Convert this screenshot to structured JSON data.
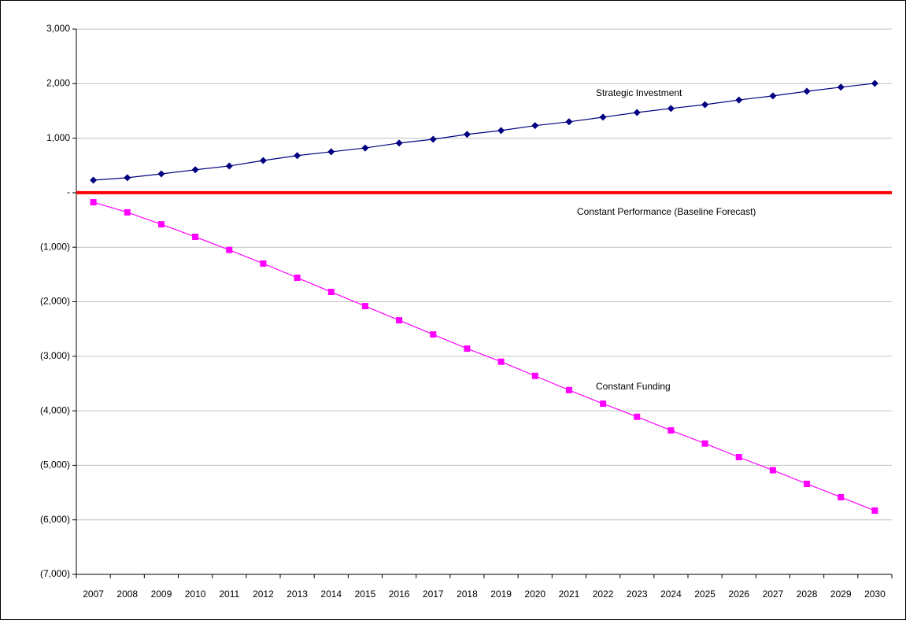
{
  "chart_data": {
    "type": "line",
    "categories": [
      "2007",
      "2008",
      "2009",
      "2010",
      "2011",
      "2012",
      "2013",
      "2014",
      "2015",
      "2016",
      "2017",
      "2018",
      "2019",
      "2020",
      "2021",
      "2022",
      "2023",
      "2024",
      "2025",
      "2026",
      "2027",
      "2028",
      "2029",
      "2030"
    ],
    "series": [
      {
        "name": "Strategic Investment",
        "color": "#000080",
        "marker": "diamond",
        "values": [
          230,
          275,
          345,
          420,
          490,
          590,
          680,
          750,
          820,
          910,
          980,
          1070,
          1140,
          1230,
          1300,
          1385,
          1470,
          1545,
          1615,
          1700,
          1775,
          1860,
          1935,
          2005
        ]
      },
      {
        "name": "Constant Performance (Baseline Forecast)",
        "color": "#ff0000",
        "marker": "none",
        "values": [
          0,
          0,
          0,
          0,
          0,
          0,
          0,
          0,
          0,
          0,
          0,
          0,
          0,
          0,
          0,
          0,
          0,
          0,
          0,
          0,
          0,
          0,
          0,
          0
        ]
      },
      {
        "name": "Constant Funding",
        "color": "#ff00ff",
        "marker": "square",
        "values": [
          -175,
          -360,
          -580,
          -810,
          -1050,
          -1300,
          -1560,
          -1820,
          -2080,
          -2340,
          -2600,
          -2860,
          -3100,
          -3360,
          -3620,
          -3870,
          -4110,
          -4360,
          -4600,
          -4850,
          -5090,
          -5340,
          -5585,
          -5830
        ]
      }
    ],
    "ylim": [
      -7000,
      3000
    ],
    "yticks": [
      {
        "value": -7000,
        "label": "(7,000)"
      },
      {
        "value": -6000,
        "label": "(6,000)"
      },
      {
        "value": -5000,
        "label": "(5,000)"
      },
      {
        "value": -4000,
        "label": "(4,000)"
      },
      {
        "value": -3000,
        "label": "(3,000)"
      },
      {
        "value": -2000,
        "label": "(2,000)"
      },
      {
        "value": -1000,
        "label": "(1,000)"
      },
      {
        "value": 0,
        "label": "-"
      },
      {
        "value": 1000,
        "label": "1,000"
      },
      {
        "value": 2000,
        "label": "2,000"
      },
      {
        "value": 3000,
        "label": "3,000"
      }
    ],
    "grid": true
  }
}
